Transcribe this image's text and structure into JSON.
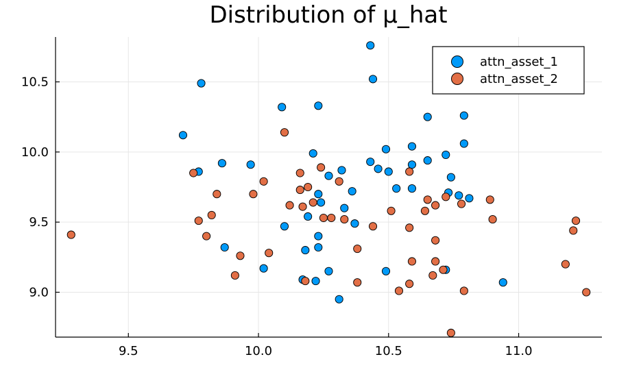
{
  "chart_data": {
    "type": "scatter",
    "title": "Distribution of μ_hat",
    "xlabel": "",
    "ylabel": "",
    "xlim": [
      9.22,
      11.32
    ],
    "ylim": [
      8.68,
      10.82
    ],
    "xticks": [
      9.5,
      10.0,
      10.5,
      11.0
    ],
    "yticks": [
      9.0,
      9.5,
      10.0,
      10.5
    ],
    "xtick_labels": [
      "9.5",
      "10.0",
      "10.5",
      "11.0"
    ],
    "ytick_labels": [
      "9.0",
      "9.5",
      "10.0",
      "10.5"
    ],
    "grid": true,
    "legend_position": "top-right",
    "series": [
      {
        "name": "attn_asset_1",
        "color": "#009af9",
        "points": [
          [
            9.71,
            10.12
          ],
          [
            9.78,
            10.49
          ],
          [
            9.77,
            9.86
          ],
          [
            9.86,
            9.92
          ],
          [
            9.97,
            9.91
          ],
          [
            10.09,
            10.32
          ],
          [
            10.1,
            9.47
          ],
          [
            10.02,
            9.17
          ],
          [
            9.87,
            9.32
          ],
          [
            10.23,
            10.33
          ],
          [
            10.21,
            9.99
          ],
          [
            10.27,
            9.83
          ],
          [
            10.23,
            9.7
          ],
          [
            10.24,
            9.64
          ],
          [
            10.19,
            9.54
          ],
          [
            10.23,
            9.4
          ],
          [
            10.23,
            9.32
          ],
          [
            10.18,
            9.3
          ],
          [
            10.17,
            9.09
          ],
          [
            10.22,
            9.08
          ],
          [
            10.27,
            9.15
          ],
          [
            10.31,
            8.95
          ],
          [
            10.32,
            9.87
          ],
          [
            10.36,
            9.72
          ],
          [
            10.33,
            9.6
          ],
          [
            10.37,
            9.49
          ],
          [
            10.43,
            10.76
          ],
          [
            10.44,
            10.52
          ],
          [
            10.49,
            10.02
          ],
          [
            10.43,
            9.93
          ],
          [
            10.46,
            9.88
          ],
          [
            10.5,
            9.86
          ],
          [
            10.59,
            10.04
          ],
          [
            10.59,
            9.91
          ],
          [
            10.53,
            9.74
          ],
          [
            10.59,
            9.74
          ],
          [
            10.49,
            9.15
          ],
          [
            10.65,
            10.25
          ],
          [
            10.65,
            9.94
          ],
          [
            10.72,
            9.98
          ],
          [
            10.74,
            9.82
          ],
          [
            10.73,
            9.71
          ],
          [
            10.77,
            9.69
          ],
          [
            10.79,
            10.26
          ],
          [
            10.79,
            10.06
          ],
          [
            10.81,
            9.67
          ],
          [
            10.72,
            9.16
          ],
          [
            10.94,
            9.07
          ]
        ]
      },
      {
        "name": "attn_asset_2",
        "color": "#e26f46",
        "points": [
          [
            9.28,
            9.41
          ],
          [
            9.75,
            9.85
          ],
          [
            9.77,
            9.51
          ],
          [
            9.8,
            9.4
          ],
          [
            9.82,
            9.55
          ],
          [
            9.84,
            9.7
          ],
          [
            9.91,
            9.12
          ],
          [
            9.93,
            9.26
          ],
          [
            9.98,
            9.7
          ],
          [
            10.02,
            9.79
          ],
          [
            10.04,
            9.28
          ],
          [
            10.1,
            10.14
          ],
          [
            10.12,
            9.62
          ],
          [
            10.16,
            9.85
          ],
          [
            10.16,
            9.73
          ],
          [
            10.19,
            9.75
          ],
          [
            10.17,
            9.61
          ],
          [
            10.21,
            9.64
          ],
          [
            10.24,
            9.89
          ],
          [
            10.25,
            9.53
          ],
          [
            10.28,
            9.53
          ],
          [
            10.31,
            9.79
          ],
          [
            10.33,
            9.52
          ],
          [
            10.38,
            9.31
          ],
          [
            10.38,
            9.07
          ],
          [
            10.18,
            9.08
          ],
          [
            10.44,
            9.47
          ],
          [
            10.51,
            9.58
          ],
          [
            10.54,
            9.01
          ],
          [
            10.58,
            9.06
          ],
          [
            10.58,
            9.86
          ],
          [
            10.58,
            9.46
          ],
          [
            10.59,
            9.22
          ],
          [
            10.64,
            9.58
          ],
          [
            10.65,
            9.66
          ],
          [
            10.67,
            9.12
          ],
          [
            10.68,
            9.62
          ],
          [
            10.68,
            9.37
          ],
          [
            10.68,
            9.22
          ],
          [
            10.71,
            9.16
          ],
          [
            10.72,
            9.68
          ],
          [
            10.74,
            8.71
          ],
          [
            10.78,
            9.63
          ],
          [
            10.79,
            9.01
          ],
          [
            10.89,
            9.66
          ],
          [
            10.9,
            9.52
          ],
          [
            11.18,
            9.2
          ],
          [
            11.21,
            9.44
          ],
          [
            11.22,
            9.51
          ],
          [
            11.26,
            9.0
          ]
        ]
      }
    ]
  }
}
